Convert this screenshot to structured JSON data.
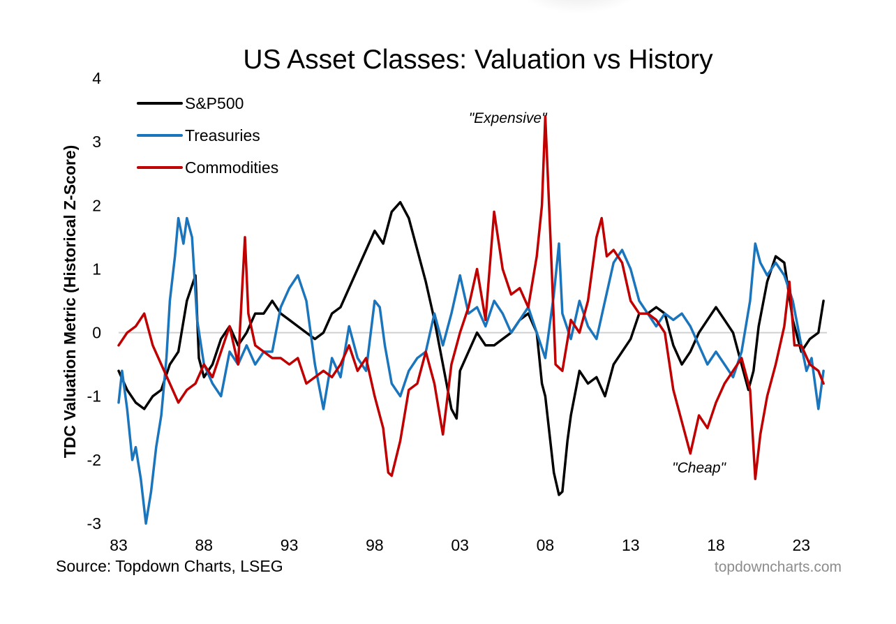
{
  "chart_data": {
    "type": "line",
    "title": "US Asset Classes: Valuation vs History",
    "ylabel": "TDC Valuation Metric (Historical Z-Score)",
    "xlabel": "",
    "xlim": [
      1983,
      2024.5
    ],
    "ylim": [
      -3,
      4
    ],
    "yticks": [
      -3,
      -2,
      -1,
      0,
      1,
      2,
      3,
      4
    ],
    "ytick_labels": [
      "-3",
      "-2",
      "-1",
      "0",
      "1",
      "2",
      "3",
      "4"
    ],
    "xticks": [
      1983,
      1988,
      1993,
      1998,
      2003,
      2008,
      2013,
      2018,
      2023
    ],
    "xtick_labels": [
      "83",
      "88",
      "93",
      "98",
      "03",
      "08",
      "13",
      "18",
      "23"
    ],
    "grid": false,
    "zero_line": true,
    "legend_position": "top-left",
    "annotations": [
      {
        "text": "\"Expensive\"",
        "x": 2005.8,
        "y": 3.3
      },
      {
        "text": "\"Cheap\"",
        "x": 2017.0,
        "y": -2.2
      }
    ],
    "series": [
      {
        "name": "S&P500",
        "color": "#000000",
        "x": [
          1983.0,
          1983.5,
          1984.0,
          1984.5,
          1985.0,
          1985.5,
          1986.0,
          1986.5,
          1987.0,
          1987.5,
          1987.7,
          1988.0,
          1988.5,
          1989.0,
          1989.5,
          1990.0,
          1990.5,
          1991.0,
          1991.5,
          1992.0,
          1992.5,
          1993.0,
          1993.5,
          1994.0,
          1994.5,
          1995.0,
          1995.5,
          1996.0,
          1996.5,
          1997.0,
          1997.5,
          1998.0,
          1998.5,
          1999.0,
          1999.5,
          2000.0,
          2000.5,
          2001.0,
          2001.5,
          2002.0,
          2002.5,
          2002.8,
          2003.0,
          2003.5,
          2004.0,
          2004.5,
          2005.0,
          2005.5,
          2006.0,
          2006.5,
          2007.0,
          2007.5,
          2007.8,
          2008.0,
          2008.5,
          2008.8,
          2009.0,
          2009.3,
          2009.5,
          2010.0,
          2010.5,
          2011.0,
          2011.5,
          2012.0,
          2012.5,
          2013.0,
          2013.5,
          2014.0,
          2014.5,
          2015.0,
          2015.5,
          2016.0,
          2016.5,
          2017.0,
          2017.5,
          2018.0,
          2018.5,
          2019.0,
          2019.5,
          2019.9,
          2020.2,
          2020.5,
          2021.0,
          2021.5,
          2022.0,
          2022.5,
          2023.0,
          2023.5,
          2024.0,
          2024.3
        ],
        "y": [
          -0.6,
          -0.9,
          -1.1,
          -1.2,
          -1.0,
          -0.9,
          -0.5,
          -0.3,
          0.5,
          0.9,
          -0.4,
          -0.7,
          -0.5,
          -0.1,
          0.1,
          -0.2,
          0.0,
          0.3,
          0.3,
          0.5,
          0.3,
          0.2,
          0.1,
          0.0,
          -0.1,
          0.0,
          0.3,
          0.4,
          0.7,
          1.0,
          1.3,
          1.6,
          1.4,
          1.9,
          2.05,
          1.8,
          1.3,
          0.8,
          0.2,
          -0.5,
          -1.2,
          -1.35,
          -0.6,
          -0.3,
          0.0,
          -0.2,
          -0.2,
          -0.1,
          0.0,
          0.2,
          0.3,
          0.0,
          -0.8,
          -1.0,
          -2.2,
          -2.55,
          -2.5,
          -1.7,
          -1.3,
          -0.6,
          -0.8,
          -0.7,
          -1.0,
          -0.5,
          -0.3,
          -0.1,
          0.3,
          0.3,
          0.4,
          0.3,
          -0.2,
          -0.5,
          -0.3,
          0.0,
          0.2,
          0.4,
          0.2,
          0.0,
          -0.5,
          -0.9,
          -0.6,
          0.1,
          0.8,
          1.2,
          1.1,
          0.2,
          -0.3,
          -0.1,
          0.0,
          0.5
        ]
      },
      {
        "name": "Treasuries",
        "color": "#1a75bc",
        "x": [
          1983.0,
          1983.2,
          1983.5,
          1983.8,
          1984.0,
          1984.3,
          1984.6,
          1984.9,
          1985.2,
          1985.5,
          1985.8,
          1986.0,
          1986.3,
          1986.5,
          1986.8,
          1987.0,
          1987.3,
          1987.6,
          1988.0,
          1988.5,
          1989.0,
          1989.5,
          1990.0,
          1990.5,
          1991.0,
          1991.5,
          1992.0,
          1992.5,
          1993.0,
          1993.5,
          1994.0,
          1994.5,
          1995.0,
          1995.5,
          1996.0,
          1996.5,
          1997.0,
          1997.5,
          1998.0,
          1998.3,
          1998.6,
          1999.0,
          1999.5,
          2000.0,
          2000.5,
          2001.0,
          2001.5,
          2002.0,
          2002.5,
          2003.0,
          2003.5,
          2004.0,
          2004.5,
          2005.0,
          2005.5,
          2006.0,
          2006.5,
          2007.0,
          2007.5,
          2008.0,
          2008.5,
          2008.8,
          2009.0,
          2009.5,
          2010.0,
          2010.5,
          2011.0,
          2011.5,
          2012.0,
          2012.5,
          2013.0,
          2013.5,
          2014.0,
          2014.5,
          2015.0,
          2015.5,
          2016.0,
          2016.5,
          2017.0,
          2017.5,
          2018.0,
          2018.5,
          2019.0,
          2019.5,
          2020.0,
          2020.3,
          2020.6,
          2021.0,
          2021.5,
          2022.0,
          2022.5,
          2023.0,
          2023.3,
          2023.6,
          2024.0,
          2024.3
        ],
        "y": [
          -1.1,
          -0.6,
          -1.2,
          -2.0,
          -1.8,
          -2.3,
          -3.0,
          -2.5,
          -1.8,
          -1.3,
          -0.4,
          0.5,
          1.2,
          1.8,
          1.4,
          1.8,
          1.5,
          0.2,
          -0.5,
          -0.8,
          -1.0,
          -0.3,
          -0.5,
          -0.2,
          -0.5,
          -0.3,
          -0.3,
          0.4,
          0.7,
          0.9,
          0.5,
          -0.5,
          -1.2,
          -0.4,
          -0.7,
          0.1,
          -0.4,
          -0.6,
          0.5,
          0.4,
          -0.2,
          -0.8,
          -1.0,
          -0.6,
          -0.4,
          -0.3,
          0.3,
          -0.2,
          0.3,
          0.9,
          0.3,
          0.4,
          0.1,
          0.5,
          0.3,
          0.0,
          0.2,
          0.4,
          0.0,
          -0.4,
          0.6,
          1.4,
          0.3,
          -0.1,
          0.5,
          0.1,
          -0.1,
          0.5,
          1.1,
          1.3,
          1.0,
          0.5,
          0.3,
          0.1,
          0.3,
          0.2,
          0.3,
          0.1,
          -0.2,
          -0.5,
          -0.3,
          -0.5,
          -0.7,
          -0.3,
          0.5,
          1.4,
          1.1,
          0.9,
          1.1,
          0.9,
          0.5,
          -0.2,
          -0.6,
          -0.4,
          -1.2,
          -0.6
        ]
      },
      {
        "name": "Commodities",
        "color": "#c00000",
        "x": [
          1983.0,
          1983.5,
          1984.0,
          1984.5,
          1985.0,
          1985.5,
          1986.0,
          1986.5,
          1987.0,
          1987.5,
          1988.0,
          1988.5,
          1989.0,
          1989.5,
          1990.0,
          1990.4,
          1990.6,
          1991.0,
          1991.5,
          1992.0,
          1992.5,
          1993.0,
          1993.5,
          1994.0,
          1994.5,
          1995.0,
          1995.5,
          1996.0,
          1996.5,
          1997.0,
          1997.5,
          1998.0,
          1998.5,
          1998.8,
          1999.0,
          1999.5,
          2000.0,
          2000.5,
          2001.0,
          2001.5,
          2002.0,
          2002.5,
          2003.0,
          2003.5,
          2004.0,
          2004.5,
          2005.0,
          2005.5,
          2006.0,
          2006.5,
          2007.0,
          2007.5,
          2007.8,
          2008.0,
          2008.3,
          2008.6,
          2009.0,
          2009.5,
          2010.0,
          2010.5,
          2011.0,
          2011.3,
          2011.6,
          2012.0,
          2012.5,
          2013.0,
          2013.5,
          2014.0,
          2014.5,
          2015.0,
          2015.5,
          2016.0,
          2016.5,
          2017.0,
          2017.5,
          2018.0,
          2018.5,
          2019.0,
          2019.5,
          2020.0,
          2020.3,
          2020.6,
          2021.0,
          2021.5,
          2022.0,
          2022.3,
          2022.6,
          2023.0,
          2023.5,
          2024.0,
          2024.3
        ],
        "y": [
          -0.2,
          0.0,
          0.1,
          0.3,
          -0.2,
          -0.5,
          -0.8,
          -1.1,
          -0.9,
          -0.8,
          -0.5,
          -0.7,
          -0.3,
          0.1,
          -0.5,
          1.5,
          0.3,
          -0.2,
          -0.3,
          -0.4,
          -0.4,
          -0.5,
          -0.4,
          -0.8,
          -0.7,
          -0.6,
          -0.7,
          -0.5,
          -0.2,
          -0.6,
          -0.4,
          -1.0,
          -1.5,
          -2.2,
          -2.25,
          -1.7,
          -0.9,
          -0.8,
          -0.3,
          -0.8,
          -1.6,
          -0.5,
          0.0,
          0.4,
          1.0,
          0.2,
          1.9,
          1.0,
          0.6,
          0.7,
          0.4,
          1.2,
          2.0,
          3.4,
          1.5,
          -0.5,
          -0.6,
          0.2,
          0.0,
          0.5,
          1.5,
          1.8,
          1.2,
          1.3,
          1.1,
          0.5,
          0.3,
          0.3,
          0.2,
          0.0,
          -0.9,
          -1.4,
          -1.9,
          -1.3,
          -1.5,
          -1.1,
          -0.8,
          -0.6,
          -0.4,
          -0.9,
          -2.3,
          -1.6,
          -1.0,
          -0.5,
          0.1,
          0.8,
          -0.2,
          -0.2,
          -0.5,
          -0.6,
          -0.8
        ]
      }
    ]
  },
  "footer": {
    "source": "Source: Topdown Charts, LSEG",
    "credit": "topdowncharts.com"
  }
}
